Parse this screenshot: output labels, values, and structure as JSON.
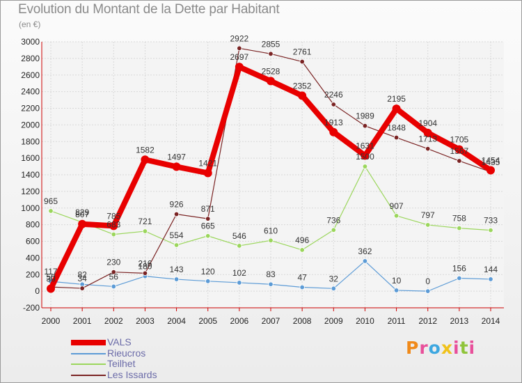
{
  "title": "Evolution du Montant de la Dette par Habitant",
  "subtitle": "(en €)",
  "brand": {
    "letters": [
      "P",
      "r",
      "o",
      "x",
      "i",
      "t",
      "i"
    ],
    "colors": [
      "#f08a1a",
      "#e84f9a",
      "#3da7e0",
      "#f0c21a",
      "#e84f9a",
      "#8fc43a",
      "#e84f9a"
    ]
  },
  "chart_data": {
    "type": "line",
    "title": "Evolution du Montant de la Dette par Habitant",
    "ylabel": "(en €)",
    "xlabel": "",
    "ylim": [
      -200,
      3000
    ],
    "y_ticks": [
      "-200",
      "0",
      "200",
      "400",
      "600",
      "800",
      "1000",
      "1200",
      "1400",
      "1600",
      "1800",
      "2000",
      "2200",
      "2400",
      "2600",
      "2800",
      "3000"
    ],
    "x": [
      "2000",
      "2001",
      "2002",
      "2003",
      "2004",
      "2005",
      "2006",
      "2007",
      "2008",
      "2009",
      "2010",
      "2011",
      "2012",
      "2013",
      "2014"
    ],
    "grid": true,
    "legend_position": "bottom-left",
    "series": [
      {
        "name": "VALS",
        "color": "#e80000",
        "values": [
          30,
          807,
          785,
          1582,
          1497,
          1421,
          2697,
          2528,
          2352,
          1913,
          1631,
          2195,
          1904,
          1705,
          1454
        ]
      },
      {
        "name": "Rieucros",
        "color": "#5c9bd6",
        "values": [
          117,
          82,
          56,
          180,
          143,
          120,
          102,
          83,
          47,
          32,
          362,
          10,
          0,
          156,
          144
        ]
      },
      {
        "name": "Teilhet",
        "color": "#9bd65c",
        "values": [
          965,
          829,
          683,
          721,
          554,
          665,
          546,
          610,
          496,
          736,
          1500,
          907,
          797,
          758,
          733
        ]
      },
      {
        "name": "Les Issards",
        "color": "#7a2323",
        "values": [
          50,
          34,
          230,
          216,
          926,
          871,
          2922,
          2855,
          2761,
          2246,
          1989,
          1848,
          1713,
          1567,
          1435
        ]
      }
    ]
  }
}
